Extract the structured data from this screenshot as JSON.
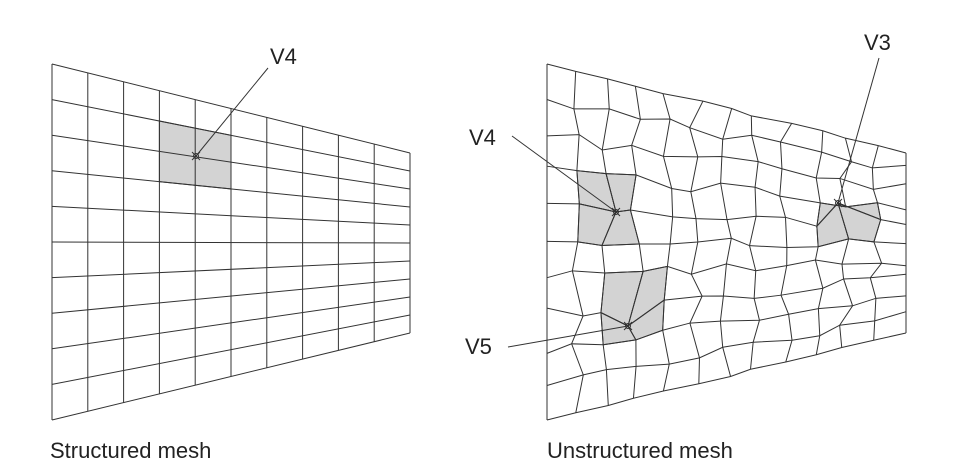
{
  "captions": {
    "left": "Structured mesh",
    "right": "Unstructured mesh"
  },
  "vertex_labels": {
    "left_v4": "V4",
    "right_v4": "V4",
    "right_v3": "V3",
    "right_v5": "V5"
  },
  "colors": {
    "line": "#333333",
    "highlight": "#d3d3d3"
  }
}
